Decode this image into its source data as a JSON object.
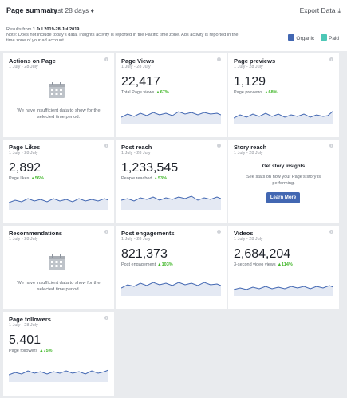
{
  "header": {
    "title": "Page summary",
    "range": "Last 28 days",
    "export_label": "Export Data",
    "download_glyph": "⤓"
  },
  "notes": {
    "line1_prefix": "Results from ",
    "line1_dates": "1 Jul 2019-28 Jul 2019",
    "line2": "Note: Does not include today's data. Insights activity is reported in the Pacific time zone. Ads activity is reported in the",
    "line3": "time zone of your ad account."
  },
  "legend": {
    "organic_label": "Organic",
    "paid_label": "Paid",
    "organic_color": "#4267b2",
    "paid_color": "#4dc7b6"
  },
  "date_sub": "1 July - 28 July",
  "info_glyph": "i",
  "up_arrow": "▲",
  "cards": {
    "actions": {
      "title": "Actions on Page",
      "empty_text": "We have insufficient data to show for the selected time period."
    },
    "page_views": {
      "title": "Page Views",
      "value": "22,417",
      "metric_label": "Total Page views",
      "pct": "67%"
    },
    "page_previews": {
      "title": "Page previews",
      "value": "1,129",
      "metric_label": "Page previews",
      "pct": "68%"
    },
    "page_likes": {
      "title": "Page Likes",
      "value": "2,892",
      "metric_label": "Page likes",
      "pct": "56%"
    },
    "post_reach": {
      "title": "Post reach",
      "value": "1,233,545",
      "metric_label": "People reached",
      "pct": "53%"
    },
    "story_reach": {
      "title": "Story reach",
      "heading": "Get story insights",
      "description": "See stats on how your Page's story is performing.",
      "button": "Learn More"
    },
    "recommendations": {
      "title": "Recommendations",
      "empty_text": "We have insufficient data to show for the selected time period."
    },
    "post_engagements": {
      "title": "Post engagements",
      "value": "821,373",
      "metric_label": "Post engagement",
      "pct": "103%"
    },
    "videos": {
      "title": "Videos",
      "value": "2,684,204",
      "metric_label": "3-second video views",
      "pct": "114%"
    },
    "page_followers": {
      "title": "Page followers",
      "value": "5,401",
      "metric_label": "Page followers",
      "pct": "75%"
    }
  }
}
